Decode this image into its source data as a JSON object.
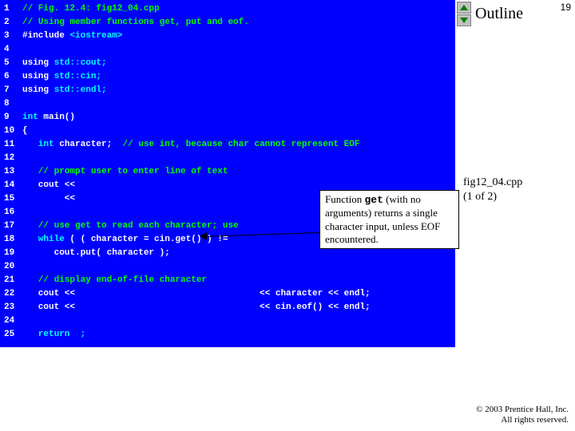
{
  "page_number": "19",
  "outline_label": "Outline",
  "fig_label_line1": "fig12_04.cpp",
  "fig_label_line2": "(1 of 2)",
  "copyright_line1": "© 2003 Prentice Hall, Inc.",
  "copyright_line2": "All rights reserved.",
  "callout_text_prefix": "Function ",
  "callout_code": "get",
  "callout_text_suffix": " (with no arguments) returns a single character input, unless EOF encountered.",
  "lines": [
    {
      "n": "1",
      "segs": [
        {
          "t": "// Fig. 12.4: fig12_04.cpp",
          "c": "c-green"
        }
      ]
    },
    {
      "n": "2",
      "segs": [
        {
          "t": "// Using member functions get, put and eof.",
          "c": "c-green"
        }
      ]
    },
    {
      "n": "3",
      "segs": [
        {
          "t": "#include ",
          "c": "c-white"
        },
        {
          "t": "<iostream>",
          "c": "c-cyan"
        }
      ]
    },
    {
      "n": "4",
      "segs": [
        {
          "t": " ",
          "c": "c-white"
        }
      ]
    },
    {
      "n": "5",
      "segs": [
        {
          "t": "using ",
          "c": "c-white"
        },
        {
          "t": "std::cout;",
          "c": "c-cyan"
        }
      ]
    },
    {
      "n": "6",
      "segs": [
        {
          "t": "using ",
          "c": "c-white"
        },
        {
          "t": "std::cin;",
          "c": "c-cyan"
        }
      ]
    },
    {
      "n": "7",
      "segs": [
        {
          "t": "using ",
          "c": "c-white"
        },
        {
          "t": "std::endl;",
          "c": "c-cyan"
        }
      ]
    },
    {
      "n": "8",
      "segs": [
        {
          "t": " ",
          "c": "c-white"
        }
      ]
    },
    {
      "n": "9",
      "segs": [
        {
          "t": "int ",
          "c": "c-cyan"
        },
        {
          "t": "main()",
          "c": "c-white"
        }
      ]
    },
    {
      "n": "10",
      "segs": [
        {
          "t": "{",
          "c": "c-white"
        }
      ]
    },
    {
      "n": "11",
      "segs": [
        {
          "t": "   int ",
          "c": "c-cyan"
        },
        {
          "t": "character;  ",
          "c": "c-white"
        },
        {
          "t": "// use int, because char cannot represent EOF",
          "c": "c-green"
        }
      ]
    },
    {
      "n": "12",
      "segs": [
        {
          "t": " ",
          "c": "c-white"
        }
      ]
    },
    {
      "n": "13",
      "segs": [
        {
          "t": "   // prompt user to enter line of text",
          "c": "c-green"
        }
      ]
    },
    {
      "n": "14",
      "segs": [
        {
          "t": "   cout << ",
          "c": "c-white"
        }
      ]
    },
    {
      "n": "15",
      "segs": [
        {
          "t": "        << ",
          "c": "c-white"
        }
      ]
    },
    {
      "n": "16",
      "segs": [
        {
          "t": " ",
          "c": "c-white"
        }
      ]
    },
    {
      "n": "17",
      "segs": [
        {
          "t": "   // use get to read each character; use",
          "c": "c-green"
        }
      ]
    },
    {
      "n": "18",
      "segs": [
        {
          "t": "   while",
          "c": "c-cyan"
        },
        {
          "t": " ( ( character = cin.get() ) !=",
          "c": "c-white"
        }
      ]
    },
    {
      "n": "19",
      "segs": [
        {
          "t": "      cout.put( character );",
          "c": "c-white"
        }
      ]
    },
    {
      "n": "20",
      "segs": [
        {
          "t": " ",
          "c": "c-white"
        }
      ]
    },
    {
      "n": "21",
      "segs": [
        {
          "t": "   // display end-of-file character",
          "c": "c-green"
        }
      ]
    },
    {
      "n": "22",
      "segs": [
        {
          "t": "   cout <<                                   << character << endl;",
          "c": "c-white"
        }
      ]
    },
    {
      "n": "23",
      "segs": [
        {
          "t": "   cout <<                                   << cin.eof() << endl;",
          "c": "c-white"
        }
      ]
    },
    {
      "n": "24",
      "segs": [
        {
          "t": " ",
          "c": "c-white"
        }
      ]
    },
    {
      "n": "25",
      "segs": [
        {
          "t": "   return  ;",
          "c": "c-cyan"
        }
      ]
    }
  ]
}
